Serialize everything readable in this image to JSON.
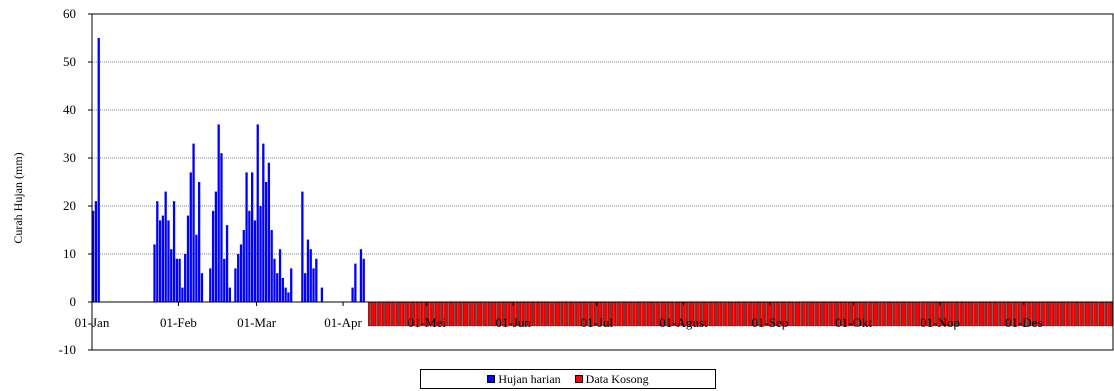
{
  "chart_data": {
    "type": "bar",
    "ylabel": "Curah Hujan (mm)",
    "ylim": [
      -10,
      60
    ],
    "yticks": [
      "-10",
      "0",
      "10",
      "20",
      "30",
      "40",
      "50",
      "60"
    ],
    "xlim": [
      1,
      366
    ],
    "xticks": [
      {
        "day": 1,
        "label": "01-Jan"
      },
      {
        "day": 32,
        "label": "01-Feb"
      },
      {
        "day": 60,
        "label": "01-Mar"
      },
      {
        "day": 91,
        "label": "01-Apr"
      },
      {
        "day": 121,
        "label": "01-Mei"
      },
      {
        "day": 152,
        "label": "01-Jun"
      },
      {
        "day": 182,
        "label": "01-Jul"
      },
      {
        "day": 213,
        "label": "01-Agust"
      },
      {
        "day": 244,
        "label": "01-Sep"
      },
      {
        "day": 274,
        "label": "01-Okt"
      },
      {
        "day": 305,
        "label": "01-Nop"
      },
      {
        "day": 335,
        "label": "01-Des"
      }
    ],
    "grid": true,
    "legend_position": "bottom-center",
    "series": [
      {
        "name": "Hujan harian",
        "color": "#0000ff",
        "points": [
          [
            1,
            19
          ],
          [
            2,
            21
          ],
          [
            3,
            55
          ],
          [
            23,
            12
          ],
          [
            24,
            21
          ],
          [
            25,
            17
          ],
          [
            26,
            18
          ],
          [
            27,
            23
          ],
          [
            28,
            17
          ],
          [
            29,
            11
          ],
          [
            30,
            21
          ],
          [
            31,
            9
          ],
          [
            32,
            9
          ],
          [
            33,
            3
          ],
          [
            34,
            10
          ],
          [
            35,
            18
          ],
          [
            36,
            27
          ],
          [
            37,
            33
          ],
          [
            38,
            14
          ],
          [
            39,
            25
          ],
          [
            40,
            6
          ],
          [
            43,
            7
          ],
          [
            44,
            19
          ],
          [
            45,
            23
          ],
          [
            46,
            37
          ],
          [
            47,
            31
          ],
          [
            48,
            9
          ],
          [
            49,
            16
          ],
          [
            50,
            3
          ],
          [
            52,
            7
          ],
          [
            53,
            10
          ],
          [
            54,
            12
          ],
          [
            55,
            15
          ],
          [
            56,
            27
          ],
          [
            57,
            19
          ],
          [
            58,
            27
          ],
          [
            59,
            17
          ],
          [
            60,
            37
          ],
          [
            61,
            20
          ],
          [
            62,
            33
          ],
          [
            63,
            25
          ],
          [
            64,
            29
          ],
          [
            65,
            15
          ],
          [
            66,
            9
          ],
          [
            67,
            6
          ],
          [
            68,
            11
          ],
          [
            69,
            5
          ],
          [
            70,
            3
          ],
          [
            71,
            2
          ],
          [
            72,
            7
          ],
          [
            76,
            23
          ],
          [
            77,
            6
          ],
          [
            78,
            13
          ],
          [
            79,
            11
          ],
          [
            80,
            7
          ],
          [
            81,
            9
          ],
          [
            83,
            3
          ],
          [
            94,
            3
          ],
          [
            95,
            8
          ],
          [
            97,
            11
          ],
          [
            98,
            9
          ]
        ]
      },
      {
        "name": "Data Kosong",
        "color": "#ff0000",
        "value": -5,
        "range": [
          100,
          366
        ]
      }
    ]
  }
}
